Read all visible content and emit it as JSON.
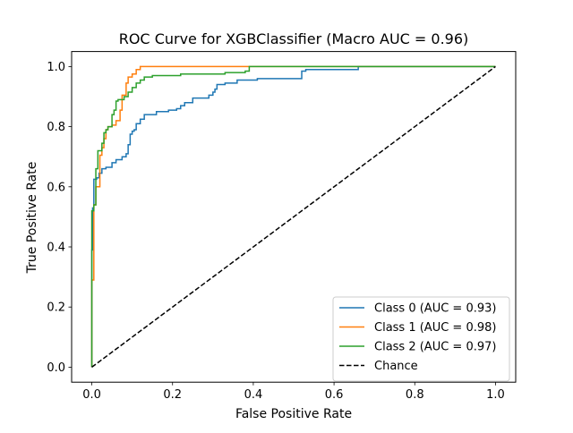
{
  "chart_data": {
    "type": "line",
    "title": "ROC Curve for XGBClassifier (Macro AUC = 0.96)",
    "xlabel": "False Positive Rate",
    "ylabel": "True Positive Rate",
    "xlim": [
      -0.05,
      1.05
    ],
    "ylim": [
      -0.05,
      1.05
    ],
    "xticks": [
      "0.0",
      "0.2",
      "0.4",
      "0.6",
      "0.8",
      "1.0"
    ],
    "yticks": [
      "0.0",
      "0.2",
      "0.4",
      "0.6",
      "0.8",
      "1.0"
    ],
    "grid": false,
    "legend_position": "lower-right",
    "series": [
      {
        "name": "Class 0 (AUC = 0.93)",
        "color": "#1f77b4",
        "x": [
          0.0,
          0.0,
          0.002,
          0.002,
          0.005,
          0.005,
          0.012,
          0.012,
          0.018,
          0.018,
          0.025,
          0.025,
          0.035,
          0.035,
          0.05,
          0.05,
          0.06,
          0.06,
          0.075,
          0.075,
          0.085,
          0.085,
          0.09,
          0.09,
          0.095,
          0.095,
          0.1,
          0.1,
          0.105,
          0.105,
          0.11,
          0.11,
          0.12,
          0.12,
          0.13,
          0.13,
          0.16,
          0.16,
          0.19,
          0.19,
          0.21,
          0.21,
          0.22,
          0.22,
          0.23,
          0.23,
          0.25,
          0.25,
          0.29,
          0.29,
          0.3,
          0.3,
          0.305,
          0.305,
          0.31,
          0.31,
          0.33,
          0.33,
          0.36,
          0.36,
          0.41,
          0.41,
          0.52,
          0.52,
          0.53,
          0.53,
          0.66,
          0.66,
          1.0
        ],
        "y": [
          0.0,
          0.39,
          0.39,
          0.53,
          0.53,
          0.625,
          0.625,
          0.63,
          0.63,
          0.645,
          0.645,
          0.66,
          0.66,
          0.665,
          0.665,
          0.68,
          0.68,
          0.69,
          0.69,
          0.7,
          0.7,
          0.71,
          0.71,
          0.74,
          0.74,
          0.775,
          0.775,
          0.785,
          0.785,
          0.79,
          0.79,
          0.81,
          0.81,
          0.825,
          0.825,
          0.84,
          0.84,
          0.85,
          0.85,
          0.855,
          0.855,
          0.86,
          0.86,
          0.87,
          0.87,
          0.88,
          0.88,
          0.895,
          0.895,
          0.905,
          0.905,
          0.915,
          0.915,
          0.925,
          0.925,
          0.94,
          0.94,
          0.945,
          0.945,
          0.955,
          0.955,
          0.96,
          0.96,
          0.985,
          0.985,
          0.99,
          0.99,
          1.0,
          1.0
        ]
      },
      {
        "name": "Class 1 (AUC = 0.98)",
        "color": "#ff7f0e",
        "x": [
          0.0,
          0.0,
          0.005,
          0.005,
          0.01,
          0.01,
          0.02,
          0.02,
          0.025,
          0.025,
          0.03,
          0.03,
          0.035,
          0.035,
          0.04,
          0.04,
          0.05,
          0.05,
          0.06,
          0.06,
          0.07,
          0.07,
          0.075,
          0.075,
          0.085,
          0.085,
          0.09,
          0.09,
          0.1,
          0.1,
          0.11,
          0.11,
          0.12,
          0.12,
          0.41,
          0.41,
          1.0
        ],
        "y": [
          0.0,
          0.29,
          0.29,
          0.54,
          0.54,
          0.6,
          0.6,
          0.705,
          0.705,
          0.73,
          0.73,
          0.76,
          0.76,
          0.79,
          0.79,
          0.8,
          0.8,
          0.805,
          0.805,
          0.82,
          0.82,
          0.855,
          0.855,
          0.905,
          0.905,
          0.945,
          0.945,
          0.965,
          0.965,
          0.975,
          0.975,
          0.99,
          0.99,
          1.0,
          1.0,
          1.0,
          1.0
        ]
      },
      {
        "name": "Class 2 (AUC = 0.97)",
        "color": "#2ca02c",
        "x": [
          0.0,
          0.0,
          0.005,
          0.005,
          0.01,
          0.01,
          0.015,
          0.015,
          0.025,
          0.025,
          0.03,
          0.03,
          0.035,
          0.035,
          0.04,
          0.04,
          0.05,
          0.05,
          0.055,
          0.055,
          0.06,
          0.06,
          0.065,
          0.065,
          0.08,
          0.08,
          0.09,
          0.09,
          0.1,
          0.1,
          0.11,
          0.11,
          0.12,
          0.12,
          0.13,
          0.13,
          0.15,
          0.15,
          0.22,
          0.22,
          0.33,
          0.33,
          0.38,
          0.38,
          0.39,
          0.39,
          0.45,
          0.45,
          1.0
        ],
        "y": [
          0.0,
          0.52,
          0.52,
          0.54,
          0.54,
          0.66,
          0.66,
          0.72,
          0.72,
          0.745,
          0.745,
          0.78,
          0.78,
          0.79,
          0.79,
          0.8,
          0.8,
          0.84,
          0.84,
          0.855,
          0.855,
          0.885,
          0.885,
          0.89,
          0.89,
          0.9,
          0.9,
          0.915,
          0.915,
          0.93,
          0.93,
          0.945,
          0.945,
          0.955,
          0.955,
          0.965,
          0.965,
          0.97,
          0.97,
          0.975,
          0.975,
          0.98,
          0.98,
          0.985,
          0.985,
          1.0,
          1.0,
          1.0,
          1.0
        ]
      }
    ],
    "reference_line": {
      "name": "Chance",
      "color": "#000000",
      "style": "dashed",
      "x": [
        0.0,
        1.0
      ],
      "y": [
        0.0,
        1.0
      ]
    }
  }
}
